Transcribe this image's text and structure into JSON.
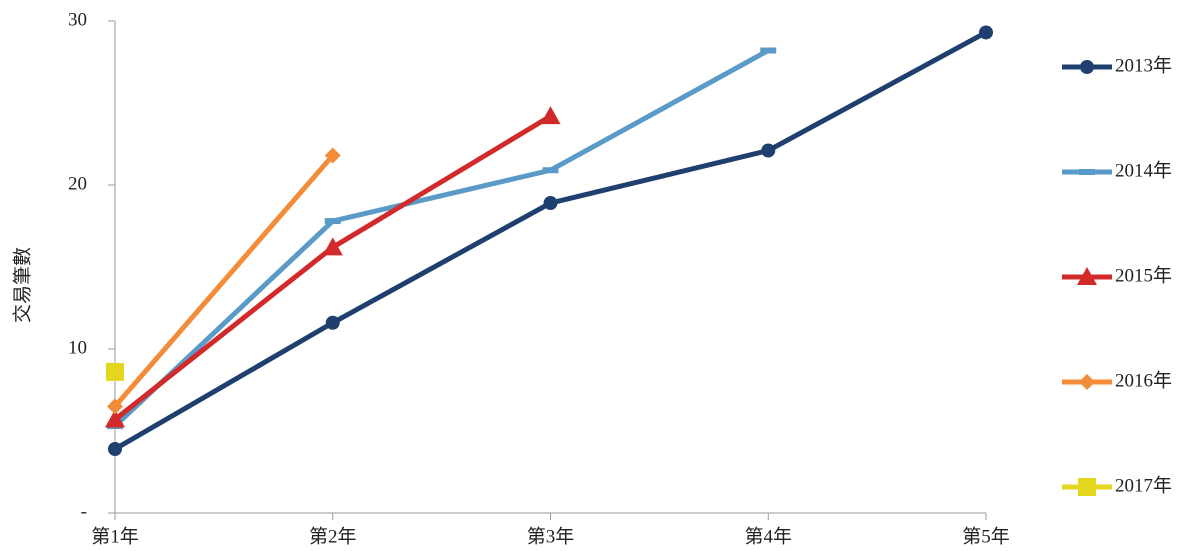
{
  "chart_data": {
    "type": "line",
    "y_label": "交易筆數",
    "categories": [
      "第1年",
      "第2年",
      "第3年",
      "第4年",
      "第5年"
    ],
    "series": [
      {
        "name": "2013年",
        "color": "#1f3f6e",
        "marker": "circle",
        "values": [
          3.9,
          11.6,
          18.9,
          22.1,
          29.3
        ]
      },
      {
        "name": "2014年",
        "color": "#5a9ac8",
        "marker": "dash",
        "values": [
          5.3,
          17.8,
          20.9,
          28.2,
          null
        ]
      },
      {
        "name": "2015年",
        "color": "#d22a2a",
        "marker": "triangle",
        "values": [
          5.7,
          16.2,
          24.2,
          null,
          null
        ]
      },
      {
        "name": "2016年",
        "color": "#f28c38",
        "marker": "diamond",
        "values": [
          6.5,
          21.8,
          null,
          null,
          null
        ]
      },
      {
        "name": "2017年",
        "color": "#e4d61e",
        "marker": "square",
        "values": [
          8.6,
          null,
          null,
          null,
          null
        ]
      }
    ],
    "ylim": [
      0,
      30
    ],
    "yticks": [
      {
        "value": 0,
        "label": "-"
      },
      10,
      20,
      30
    ],
    "legend": "right"
  }
}
